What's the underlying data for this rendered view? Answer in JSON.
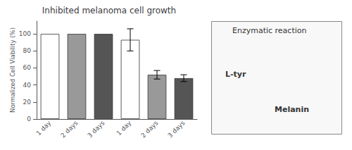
{
  "chart_data": {
    "type": "bar",
    "title": "Inhibited melanoma cell growth",
    "ylabel": "Normalized Cell Viability (%)",
    "categories": [
      "1 day",
      "2 days",
      "3 days",
      "1 day",
      "2 days",
      "3 days"
    ],
    "values": [
      100,
      100,
      100,
      93,
      52,
      48
    ],
    "errors": [
      null,
      null,
      null,
      13,
      5,
      4
    ],
    "colors": [
      "#ffffff",
      "#999999",
      "#555555",
      "#ffffff",
      "#999999",
      "#555555"
    ],
    "ylim": [
      0,
      115
    ],
    "yticks": [
      0,
      20,
      40,
      60,
      80,
      100
    ],
    "grid": false,
    "annotations": [
      "Enzymatic reaction",
      "L-tyr",
      "Melanin"
    ]
  }
}
